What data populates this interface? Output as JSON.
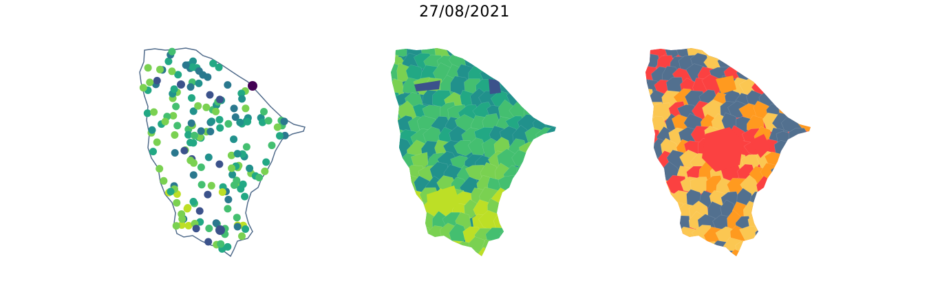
{
  "title": "27/08/2021",
  "maps": [
    {
      "kind": "point-map",
      "palette": [
        "#440154",
        "#3b528b",
        "#21918c",
        "#2a788e",
        "#22a884",
        "#44bf70",
        "#7ad151",
        "#bddf26",
        "#fde725"
      ]
    },
    {
      "kind": "choropleth",
      "palette": [
        "#440154",
        "#3b528b",
        "#2a788e",
        "#21918c",
        "#22a884",
        "#44bf70",
        "#7ad151",
        "#bddf26",
        "#fde725"
      ]
    },
    {
      "kind": "classified-choropleth",
      "palette": [
        "#52708f",
        "#fbc752",
        "#ff9a1f",
        "#fb4141"
      ]
    }
  ]
}
